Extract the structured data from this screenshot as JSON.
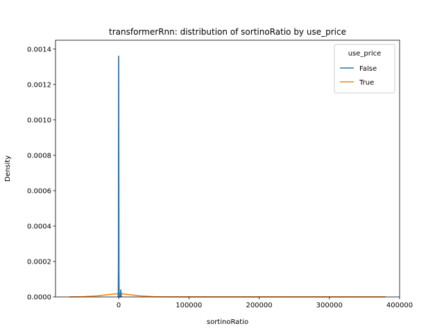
{
  "chart_data": {
    "type": "line",
    "title": "transformerRnn: distribution of sortinoRatio by use_price",
    "xlabel": "sortinoRatio",
    "ylabel": "Density",
    "xlim": [
      -90000,
      400000
    ],
    "ylim": [
      0,
      0.00145
    ],
    "xticks": [
      0,
      100000,
      200000,
      300000,
      400000
    ],
    "xtick_labels": [
      "0",
      "100000",
      "200000",
      "300000",
      "400000"
    ],
    "yticks": [
      0,
      0.0002,
      0.0004,
      0.0006,
      0.0008,
      0.001,
      0.0012,
      0.0014
    ],
    "ytick_labels": [
      "0.0000",
      "0.0002",
      "0.0004",
      "0.0006",
      "0.0008",
      "0.0010",
      "0.0012",
      "0.0014"
    ],
    "grid": false,
    "legend": {
      "title": "use_price",
      "placement": "top-right"
    },
    "series": [
      {
        "name": "False",
        "color": "#1f77b4",
        "x": [
          -1000,
          -600,
          -400,
          -250,
          -100,
          0,
          100,
          250,
          400,
          600,
          800,
          1000,
          1500,
          2000,
          2500,
          2800,
          3000,
          3200,
          3500,
          4000,
          4500
        ],
        "y": [
          0,
          2e-05,
          0.0002,
          0.0009,
          0.00135,
          0.00136,
          0.0012,
          0.0006,
          0.00015,
          3e-05,
          1e-05,
          0.0,
          0.0,
          0.0,
          1e-05,
          3e-05,
          4e-05,
          3e-05,
          1e-05,
          0,
          0
        ]
      },
      {
        "name": "True",
        "color": "#ff7f0e",
        "x": [
          -70000,
          -50000,
          -30000,
          -15000,
          -5000,
          0,
          5000,
          15000,
          30000,
          50000,
          70000,
          100000,
          150000,
          200000,
          250000,
          300000,
          350000,
          380000
        ],
        "y": [
          1e-07,
          1.5e-06,
          6e-06,
          1.3e-05,
          1.75e-05,
          1.85e-05,
          1.75e-05,
          1.3e-05,
          6e-06,
          1.5e-06,
          5e-07,
          2e-07,
          1e-07,
          1e-07,
          1e-07,
          1e-07,
          1e-07,
          1e-07
        ]
      }
    ]
  }
}
